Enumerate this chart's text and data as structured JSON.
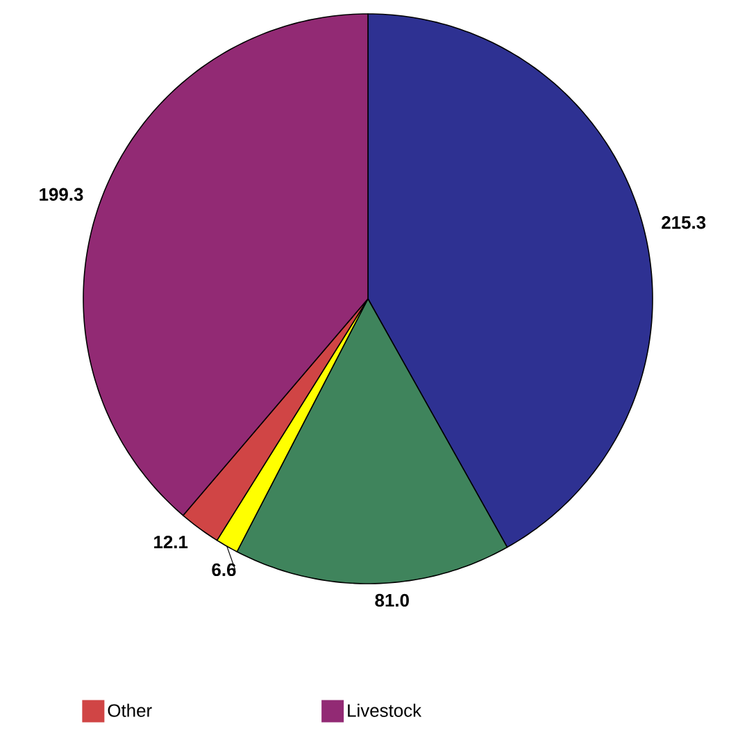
{
  "chart_data": {
    "type": "pie",
    "categories": [
      null,
      null,
      null,
      "Other",
      "Livestock"
    ],
    "values": [
      215.3,
      81.0,
      6.6,
      12.1,
      199.3
    ],
    "colors": [
      "#2e3192",
      "#3f845c",
      "#ffff00",
      "#d04545",
      "#922a74"
    ],
    "value_labels": [
      "215.3",
      "81.0",
      "6.6",
      "12.1",
      "199.3"
    ],
    "legend": "bottom"
  }
}
